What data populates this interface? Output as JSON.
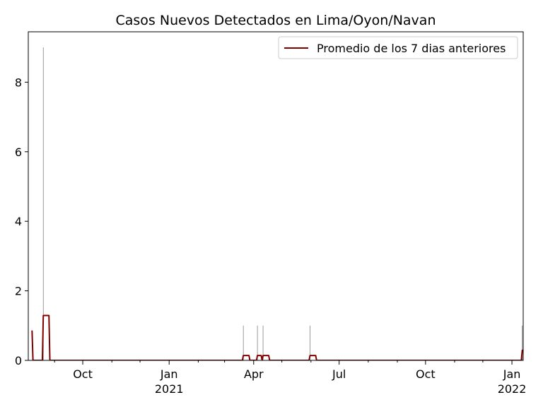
{
  "chart_data": {
    "type": "line",
    "title": "Casos Nuevos Detectados en Lima/Oyon/Navan",
    "xlabel": "",
    "ylabel": "",
    "xlim": [
      "2020-08-04",
      "2022-01-13"
    ],
    "ylim": [
      0,
      9.45
    ],
    "y_ticks": [
      0,
      2,
      4,
      6,
      8
    ],
    "x_ticks": [
      {
        "date": "2020-10-01",
        "label": "Oct",
        "year": ""
      },
      {
        "date": "2021-01-01",
        "label": "Jan",
        "year": "2021"
      },
      {
        "date": "2021-04-01",
        "label": "Apr",
        "year": ""
      },
      {
        "date": "2021-07-01",
        "label": "Jul",
        "year": ""
      },
      {
        "date": "2021-10-01",
        "label": "Oct",
        "year": ""
      },
      {
        "date": "2022-01-01",
        "label": "Jan",
        "year": "2022"
      }
    ],
    "minor_x_ticks": [
      "2020-08-01",
      "2020-09-01",
      "2020-11-01",
      "2020-12-01",
      "2021-02-01",
      "2021-03-01",
      "2021-05-01",
      "2021-06-01",
      "2021-08-01",
      "2021-09-01",
      "2021-11-01",
      "2021-12-01"
    ],
    "legend": {
      "position": "top-right",
      "entries": [
        "Promedio de los 7 dias anteriores"
      ]
    },
    "grid": false,
    "series": [
      {
        "name": "",
        "kind": "daily-bars",
        "color": "#808080",
        "points": [
          {
            "x": "2020-08-20",
            "y": 9
          },
          {
            "x": "2021-03-21",
            "y": 1
          },
          {
            "x": "2021-04-05",
            "y": 1
          },
          {
            "x": "2021-04-11",
            "y": 1
          },
          {
            "x": "2021-05-31",
            "y": 1
          },
          {
            "x": "2022-01-12",
            "y": 1
          }
        ]
      },
      {
        "name": "Promedio de los 7 dias anteriores",
        "kind": "line",
        "color": "#800000",
        "points": [
          {
            "x": "2020-08-08",
            "y": 0.86
          },
          {
            "x": "2020-08-09",
            "y": 0
          },
          {
            "x": "2020-08-19",
            "y": 0
          },
          {
            "x": "2020-08-20",
            "y": 1.29
          },
          {
            "x": "2020-08-26",
            "y": 1.29
          },
          {
            "x": "2020-08-27",
            "y": 0
          },
          {
            "x": "2021-03-20",
            "y": 0
          },
          {
            "x": "2021-03-21",
            "y": 0.14
          },
          {
            "x": "2021-03-27",
            "y": 0.14
          },
          {
            "x": "2021-03-28",
            "y": 0
          },
          {
            "x": "2021-04-04",
            "y": 0
          },
          {
            "x": "2021-04-05",
            "y": 0.14
          },
          {
            "x": "2021-04-09",
            "y": 0.14
          },
          {
            "x": "2021-04-10",
            "y": 0
          },
          {
            "x": "2021-04-11",
            "y": 0.14
          },
          {
            "x": "2021-04-17",
            "y": 0.14
          },
          {
            "x": "2021-04-18",
            "y": 0
          },
          {
            "x": "2021-05-30",
            "y": 0
          },
          {
            "x": "2021-05-31",
            "y": 0.14
          },
          {
            "x": "2021-06-06",
            "y": 0.14
          },
          {
            "x": "2021-06-07",
            "y": 0
          },
          {
            "x": "2022-01-11",
            "y": 0
          },
          {
            "x": "2022-01-12",
            "y": 0.29
          }
        ]
      }
    ]
  }
}
